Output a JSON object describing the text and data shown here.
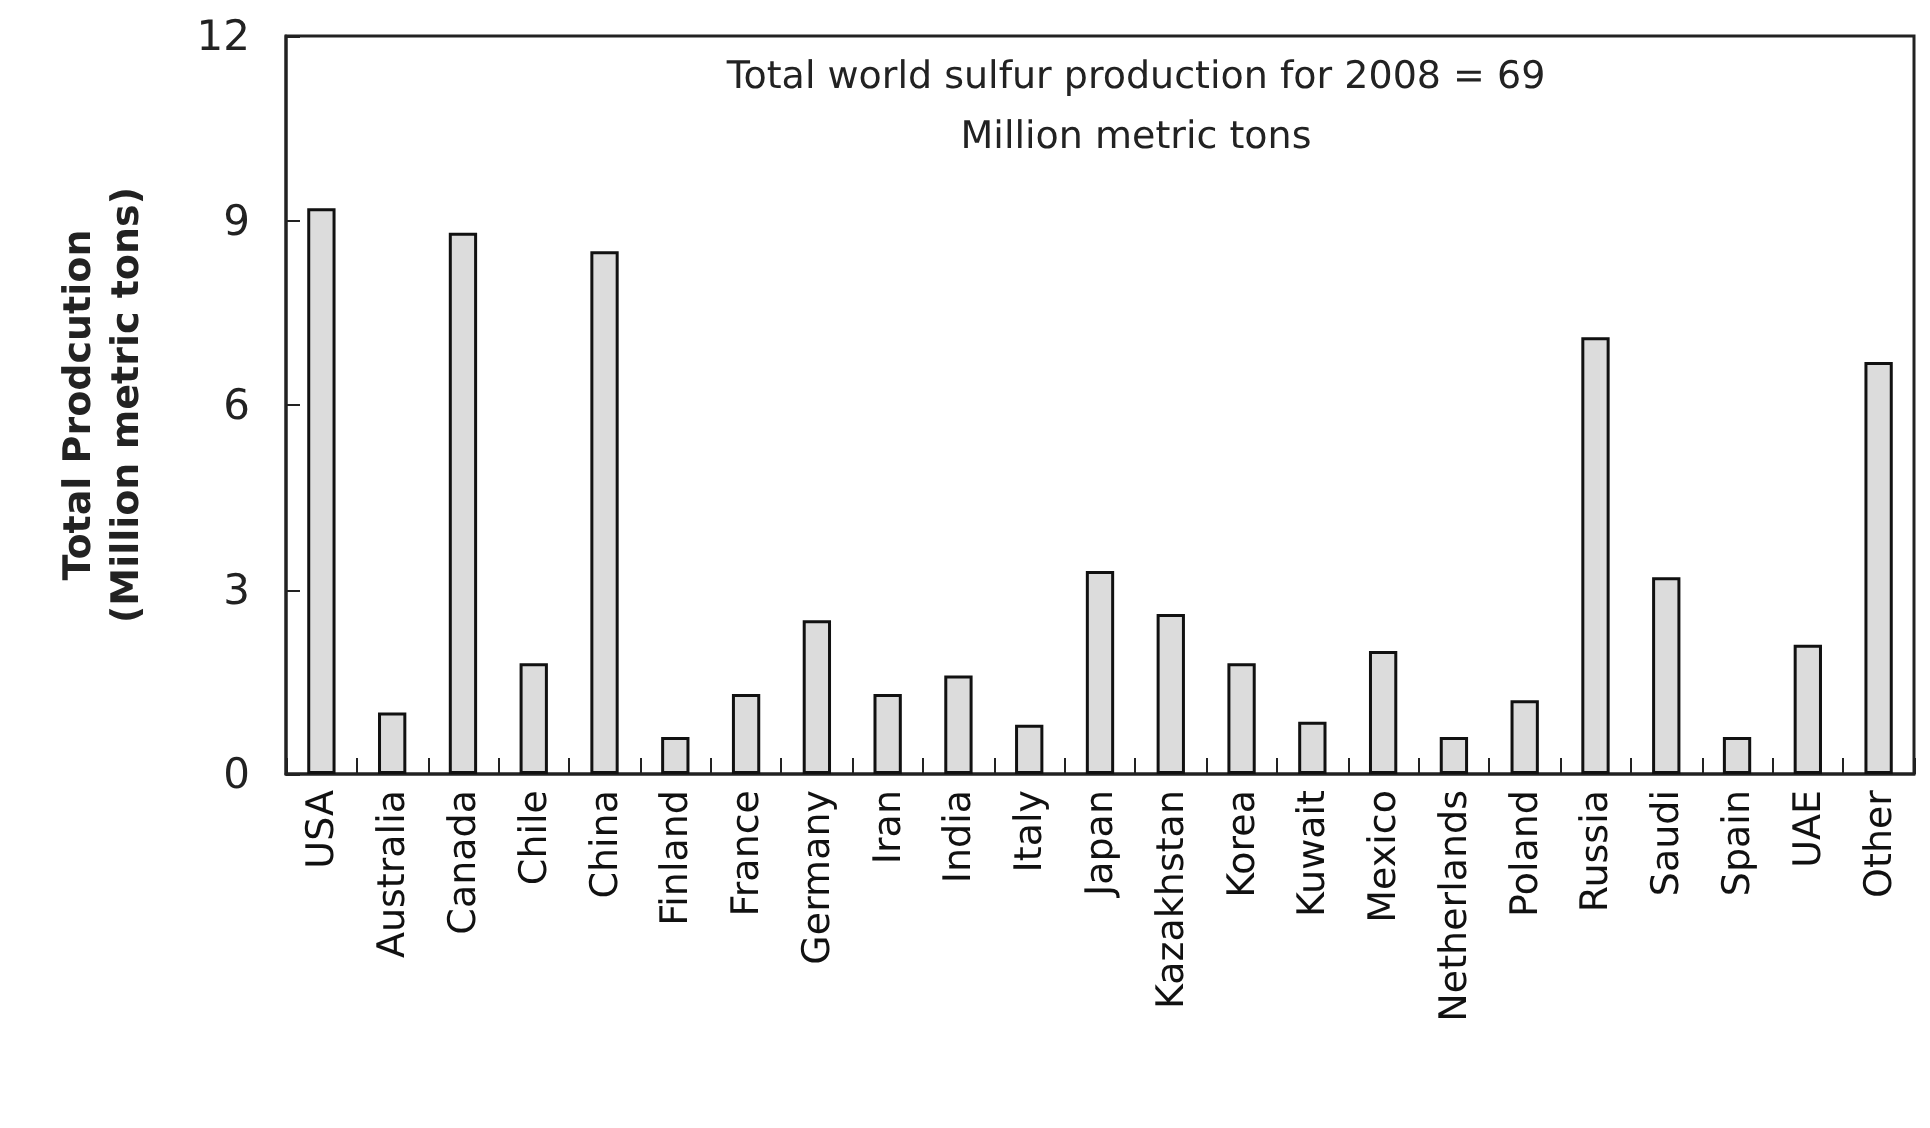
{
  "chart_data": {
    "type": "bar",
    "title": "Total world sulfur production for 2008 = 69\nMillion metric tons",
    "ylabel": "Total Prodcution\n(Million metric tons)",
    "categories": [
      "USA",
      "Australia",
      "Canada",
      "Chile",
      "China",
      "Finland",
      "France",
      "Germany",
      "Iran",
      "India",
      "Italy",
      "Japan",
      "Kazakhstan",
      "Korea",
      "Kuwait",
      "Mexico",
      "Netherlands",
      "Poland",
      "Russia",
      "Saudi",
      "Spain",
      "UAE",
      "Other"
    ],
    "values": [
      9.2,
      1.0,
      8.8,
      1.8,
      8.5,
      0.6,
      1.3,
      2.5,
      1.3,
      1.6,
      0.8,
      3.3,
      2.6,
      1.8,
      0.85,
      2.0,
      0.6,
      1.2,
      7.1,
      3.2,
      0.6,
      2.1,
      6.7
    ],
    "color": "#dcdcdc",
    "ylim": [
      0,
      12
    ],
    "yticks": [
      0,
      3,
      6,
      9,
      12
    ],
    "grid": false
  }
}
